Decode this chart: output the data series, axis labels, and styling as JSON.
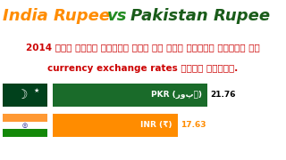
{
  "title_part1": "India Rupee",
  "title_vs": " vs ",
  "title_part2": "Pakistan Rupee",
  "title_color1": "#FF8C00",
  "title_color_vs": "#228B22",
  "title_color2": "#1a5c1a",
  "subtitle_line1": "2014 में मोदी सरकार आने के बाद दोनों देशों की",
  "subtitle_line2": "currency exchange rates जरूर देखें.",
  "subtitle_color": "#cc0000",
  "bar1_label": "PKR (روپے)",
  "bar1_value": 21.76,
  "bar1_color": "#1a6b2a",
  "bar2_label": "INR (₹)",
  "bar2_value": 17.63,
  "bar2_color": "#FF8C00",
  "bar_max": 26,
  "background_color": "#ffffff",
  "title_fontsize": 13,
  "subtitle_fontsize": 7.5
}
